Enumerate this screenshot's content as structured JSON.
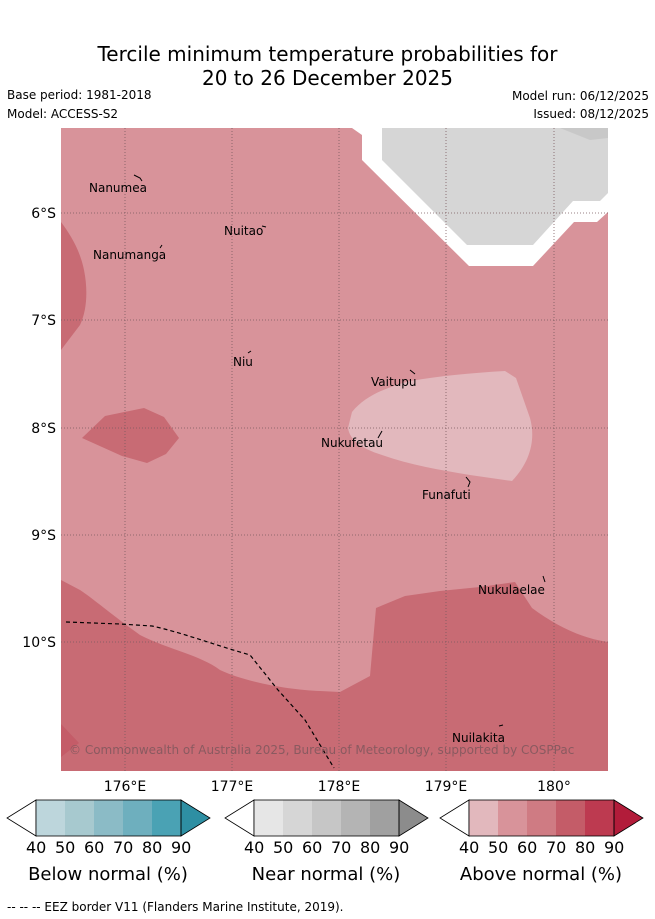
{
  "header": {
    "title_line1": "Tercile minimum temperature probabilities for",
    "title_line2": "20 to 26 December 2025",
    "base_period": "Base period: 1981-2018",
    "model": "Model: ACCESS-S2",
    "model_run": "Model run: 06/12/2025",
    "issued": "Issued: 08/12/2025"
  },
  "map": {
    "lat_labels": [
      "6°S",
      "7°S",
      "8°S",
      "9°S",
      "10°S"
    ],
    "lon_labels": [
      "176°E",
      "177°E",
      "178°E",
      "179°E",
      "180°"
    ],
    "places": [
      "Nanumea",
      "Nuitao",
      "Nanumanga",
      "Niu",
      "Vaitupu",
      "Nukufetau",
      "Funafuti",
      "Nukulaelae",
      "Nuilakita"
    ],
    "copyright": "© Commonwealth of Australia 2025, Bureau of Meteorology, supported by COSPPac",
    "colors": {
      "above_50": "#d8939a",
      "above_40": "#e2b8bd",
      "above_70": "#c86b74",
      "near_50": "#d6d6d6",
      "land_white": "#ffffff"
    }
  },
  "legend": {
    "ticks": [
      "40",
      "50",
      "60",
      "70",
      "80",
      "90"
    ],
    "below_label": "Below normal (%)",
    "near_label": "Near normal (%)",
    "above_label": "Above normal (%)",
    "below_colors": [
      "#bdd6dc",
      "#a7c9cf",
      "#8bbbc6",
      "#6eafbe",
      "#4aa2b4"
    ],
    "below_tip": "#2e8fa3",
    "near_colors": [
      "#e6e6e6",
      "#d6d6d6",
      "#c6c6c6",
      "#b4b4b4",
      "#a0a0a0"
    ],
    "near_tip": "#8c8c8c",
    "above_colors": [
      "#e2b8bd",
      "#d8939a",
      "#cf7b83",
      "#c45c68",
      "#bd3a50"
    ],
    "above_tip": "#b21c3a"
  },
  "footer": {
    "eez_note": "--  --  -- EEZ border V11 (Flanders Marine Institute, 2019)."
  }
}
